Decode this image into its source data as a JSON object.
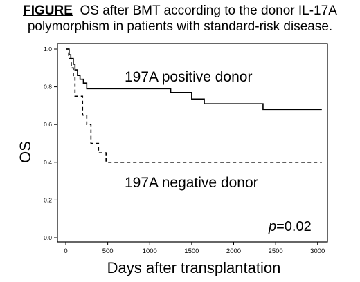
{
  "caption": {
    "label": "FIGURE",
    "line1": "OS after BMT according to the donor IL-17A",
    "line2": "polymorphism in patients with standard-risk disease."
  },
  "chart_data": {
    "type": "line",
    "xlabel": "Days after transplantation",
    "ylabel": "OS",
    "xlim": [
      0,
      3050
    ],
    "ylim": [
      0,
      1.0
    ],
    "xticks": [
      0,
      500,
      1000,
      1500,
      2000,
      2500,
      3000
    ],
    "yticks": [
      0,
      0.2,
      0.4,
      0.6,
      0.8,
      1.0
    ],
    "ytick_labels": [
      "0.0",
      "0.2",
      "0.4",
      "0.6",
      "0.8",
      "1.0"
    ],
    "grid": false,
    "legend": "none",
    "step": true,
    "annotations": [
      {
        "text": "197A positive donor",
        "x": 1000,
        "y": 0.87
      },
      {
        "text": "197A negative donor",
        "x": 1000,
        "y": 0.3
      },
      {
        "text_italic": "p",
        "text": "=0.02",
        "x": 2700,
        "y": 0.05
      }
    ],
    "series": [
      {
        "style": "solid",
        "x": [
          0,
          40,
          60,
          90,
          110,
          140,
          170,
          210,
          250,
          1250,
          1500,
          1650,
          2350,
          3050
        ],
        "y": [
          1.0,
          0.97,
          0.95,
          0.92,
          0.89,
          0.86,
          0.84,
          0.82,
          0.79,
          0.77,
          0.735,
          0.71,
          0.68,
          0.68
        ]
      },
      {
        "style": "dashed",
        "x": [
          0,
          35,
          65,
          90,
          110,
          200,
          250,
          300,
          330,
          390,
          480,
          3050
        ],
        "y": [
          1.0,
          0.95,
          0.9,
          0.85,
          0.75,
          0.65,
          0.6,
          0.5,
          0.5,
          0.45,
          0.4,
          0.4
        ]
      }
    ]
  }
}
